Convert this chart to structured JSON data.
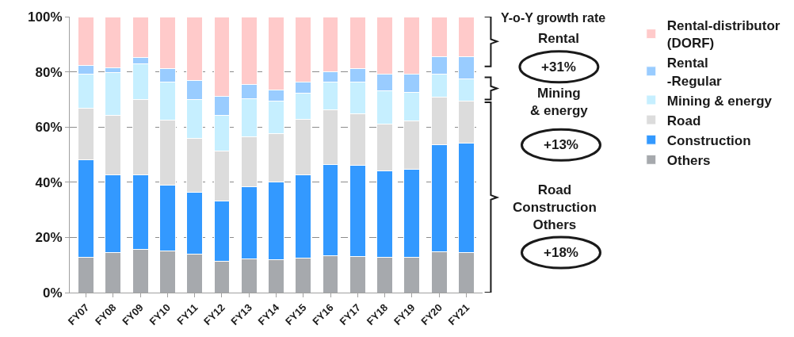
{
  "chart_data": {
    "type": "bar",
    "stacked": true,
    "categories": [
      "FY07",
      "FY08",
      "FY09",
      "FY10",
      "FY11",
      "FY12",
      "FY13",
      "FY14",
      "FY15",
      "FY16",
      "FY17",
      "FY18",
      "FY19",
      "FY20",
      "FY21"
    ],
    "series": [
      {
        "name": "Others",
        "color": "#a6a9ad",
        "values": [
          12.7,
          14.5,
          15.6,
          15.1,
          14.0,
          11.3,
          12.3,
          11.8,
          12.6,
          13.5,
          13.0,
          12.8,
          12.9,
          14.9,
          14.5
        ]
      },
      {
        "name": "Construction",
        "color": "#3399ff",
        "values": [
          35.4,
          28.2,
          27.1,
          23.9,
          22.4,
          21.8,
          26.0,
          28.4,
          30.1,
          32.8,
          33.1,
          31.2,
          31.7,
          38.7,
          39.8
        ]
      },
      {
        "name": "Road",
        "color": "#dcdcdc",
        "values": [
          18.6,
          21.4,
          27.3,
          23.4,
          19.4,
          18.2,
          18.2,
          17.3,
          20.0,
          19.9,
          18.8,
          17.0,
          17.5,
          17.2,
          15.2
        ]
      },
      {
        "name": "Mining & energy",
        "color": "#c6efff",
        "values": [
          12.6,
          15.6,
          13.0,
          14.0,
          14.3,
          12.8,
          13.7,
          12.0,
          9.6,
          10.1,
          11.4,
          12.1,
          10.6,
          8.3,
          7.9
        ]
      },
      {
        "name": "Rental\n-Regular",
        "color": "#99ccff",
        "values": [
          3.1,
          1.8,
          2.3,
          4.8,
          6.9,
          7.1,
          5.1,
          4.0,
          4.1,
          3.8,
          5.0,
          6.1,
          6.5,
          6.4,
          8.1
        ]
      },
      {
        "name": "Rental-distributor\n(DORF)",
        "color": "#ffcaca",
        "values": [
          17.6,
          18.5,
          14.7,
          18.8,
          23.0,
          28.8,
          24.7,
          26.5,
          23.6,
          19.9,
          18.7,
          20.8,
          20.8,
          14.5,
          14.5
        ]
      }
    ],
    "ylim": [
      0,
      100
    ],
    "yticks": [
      {
        "value": 0,
        "label": "0%"
      },
      {
        "value": 20,
        "label": "20%"
      },
      {
        "value": 40,
        "label": "40%"
      },
      {
        "value": 60,
        "label": "60%"
      },
      {
        "value": 80,
        "label": "80%"
      },
      {
        "value": 100,
        "label": "100%"
      }
    ],
    "grid": "y",
    "legend": "right",
    "annotations": [
      "Y-o-Y growth rate",
      "Rental",
      "+31%",
      "Mining\n& energy",
      "+13%",
      "Road\nConstruction\nOthers",
      "+18%"
    ]
  }
}
